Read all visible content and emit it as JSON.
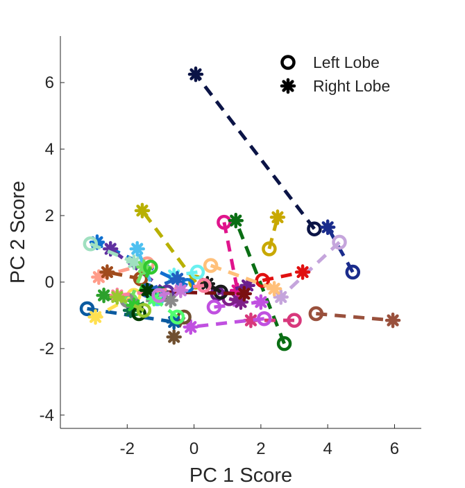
{
  "chart_data": {
    "type": "scatter",
    "title": "",
    "xlabel": "PC 1 Score",
    "ylabel": "PC 2 Score",
    "xlim": [
      -4,
      6.8
    ],
    "ylim": [
      -4.4,
      7.4
    ],
    "xticks": [
      -2,
      0,
      2,
      4,
      6
    ],
    "yticks": [
      -4,
      -2,
      0,
      2,
      4,
      6
    ],
    "xtick_labels": [
      "-2",
      "0",
      "2",
      "4",
      "6"
    ],
    "ytick_labels": [
      "-4",
      "-2",
      "0",
      "2",
      "4",
      "6"
    ],
    "grid": false,
    "legend": {
      "placement": "top-right",
      "entries": [
        {
          "label": "Left Lobe",
          "marker": "circle"
        },
        {
          "label": "Right Lobe",
          "marker": "asterisk"
        }
      ]
    },
    "pairs": [
      {
        "color": "#0b1446",
        "left": [
          3.6,
          1.6
        ],
        "right": [
          0.05,
          6.25
        ]
      },
      {
        "color": "#1a2c8c",
        "left": [
          4.75,
          0.3
        ],
        "right": [
          4.0,
          1.65
        ]
      },
      {
        "color": "#c8a800",
        "left": [
          2.25,
          1.0
        ],
        "right": [
          2.5,
          1.95
        ]
      },
      {
        "color": "#e0148c",
        "left": [
          0.9,
          1.8
        ],
        "right": [
          1.3,
          -0.25
        ]
      },
      {
        "color": "#0a6e14",
        "left": [
          2.7,
          -1.85
        ],
        "right": [
          1.25,
          1.85
        ]
      },
      {
        "color": "#c5a5dc",
        "left": [
          4.35,
          1.2
        ],
        "right": [
          2.6,
          -0.45
        ]
      },
      {
        "color": "#e01010",
        "left": [
          2.05,
          0.05
        ],
        "right": [
          3.25,
          0.3
        ]
      },
      {
        "color": "#99503c",
        "left": [
          3.65,
          -0.95
        ],
        "right": [
          5.95,
          -1.15
        ]
      },
      {
        "color": "#b8b000",
        "left": [
          0.05,
          0.0
        ],
        "right": [
          -1.55,
          2.15
        ]
      },
      {
        "color": "#6c1f8e",
        "left": [
          0.7,
          -0.35
        ],
        "right": [
          1.6,
          -0.1
        ]
      },
      {
        "color": "#d8387c",
        "left": [
          3.0,
          -1.15
        ],
        "right": [
          1.7,
          -1.15
        ]
      },
      {
        "color": "#c050e0",
        "left": [
          0.6,
          -0.75
        ],
        "right": [
          2.0,
          -0.6
        ]
      },
      {
        "color": "#7f1f8a",
        "left": [
          1.05,
          -0.5
        ],
        "right": [
          1.4,
          -0.6
        ]
      },
      {
        "color": "#c050e0",
        "left": [
          2.1,
          -1.1
        ],
        "right": [
          -0.1,
          -1.35
        ]
      },
      {
        "color": "#705030",
        "left": [
          -0.3,
          -1.05
        ],
        "right": [
          -0.6,
          -1.65
        ]
      },
      {
        "color": "#1a1a1a",
        "left": [
          0.8,
          -0.3
        ],
        "right": [
          0.4,
          -0.05
        ]
      },
      {
        "color": "#ffc07a",
        "left": [
          0.5,
          0.5
        ],
        "right": [
          2.4,
          -0.2
        ]
      },
      {
        "color": "#6af0f0",
        "left": [
          0.1,
          0.3
        ],
        "right": [
          -0.6,
          0.2
        ]
      },
      {
        "color": "#0a5aa0",
        "left": [
          -3.2,
          -0.8
        ],
        "right": [
          -0.6,
          -1.2
        ]
      },
      {
        "color": "#ffe050",
        "left": [
          -1.8,
          -0.4
        ],
        "right": [
          -2.95,
          -1.05
        ]
      },
      {
        "color": "#7a1010",
        "left": [
          -0.8,
          -0.3
        ],
        "right": [
          1.5,
          -0.35
        ]
      },
      {
        "color": "#1070d0",
        "left": [
          -0.2,
          -0.1
        ],
        "right": [
          -2.9,
          1.2
        ]
      },
      {
        "color": "#6030a0",
        "left": [
          -0.8,
          -0.3
        ],
        "right": [
          -2.5,
          1.0
        ]
      },
      {
        "color": "#ff9d8a",
        "left": [
          -1.4,
          0.55
        ],
        "right": [
          -2.85,
          0.15
        ]
      },
      {
        "color": "#a0e0c0",
        "left": [
          -3.1,
          1.15
        ],
        "right": [
          -1.8,
          0.6
        ]
      },
      {
        "color": "#2ca02c",
        "left": [
          -1.75,
          -0.8
        ],
        "right": [
          -2.7,
          -0.4
        ]
      },
      {
        "color": "#a04b1c",
        "left": [
          -1.6,
          0.1
        ],
        "right": [
          -2.6,
          0.3
        ]
      },
      {
        "color": "#4ec0f0",
        "left": [
          -1.1,
          -0.5
        ],
        "right": [
          -1.7,
          1.0
        ]
      },
      {
        "color": "#70e060",
        "left": [
          -1.9,
          -0.55
        ],
        "right": [
          -1.5,
          0.45
        ]
      },
      {
        "color": "#0d6e4a",
        "left": [
          -1.0,
          -0.35
        ],
        "right": [
          -1.9,
          -0.85
        ]
      },
      {
        "color": "#8a8a8a",
        "left": [
          -2.0,
          -0.55
        ],
        "right": [
          -0.7,
          -0.55
        ]
      },
      {
        "color": "#2060c0",
        "left": [
          -1.4,
          -0.25
        ],
        "right": [
          -0.5,
          0.1
        ]
      },
      {
        "color": "#50ff70",
        "left": [
          -0.5,
          -1.05
        ],
        "right": [
          -1.2,
          -0.5
        ]
      },
      {
        "color": "#30c830",
        "left": [
          -1.3,
          0.45
        ],
        "right": [
          -1.8,
          -0.7
        ]
      },
      {
        "color": "#ff80a0",
        "left": [
          0.3,
          -0.1
        ],
        "right": [
          -2.3,
          -0.4
        ]
      },
      {
        "color": "#003a00",
        "left": [
          -1.65,
          -0.95
        ],
        "right": [
          -1.4,
          -0.25
        ]
      },
      {
        "color": "#c878d8",
        "left": [
          -1.05,
          -0.4
        ],
        "right": [
          -0.4,
          -0.25
        ]
      },
      {
        "color": "#99c830",
        "left": [
          -1.5,
          -0.85
        ],
        "right": [
          -2.3,
          -0.45
        ]
      }
    ]
  }
}
